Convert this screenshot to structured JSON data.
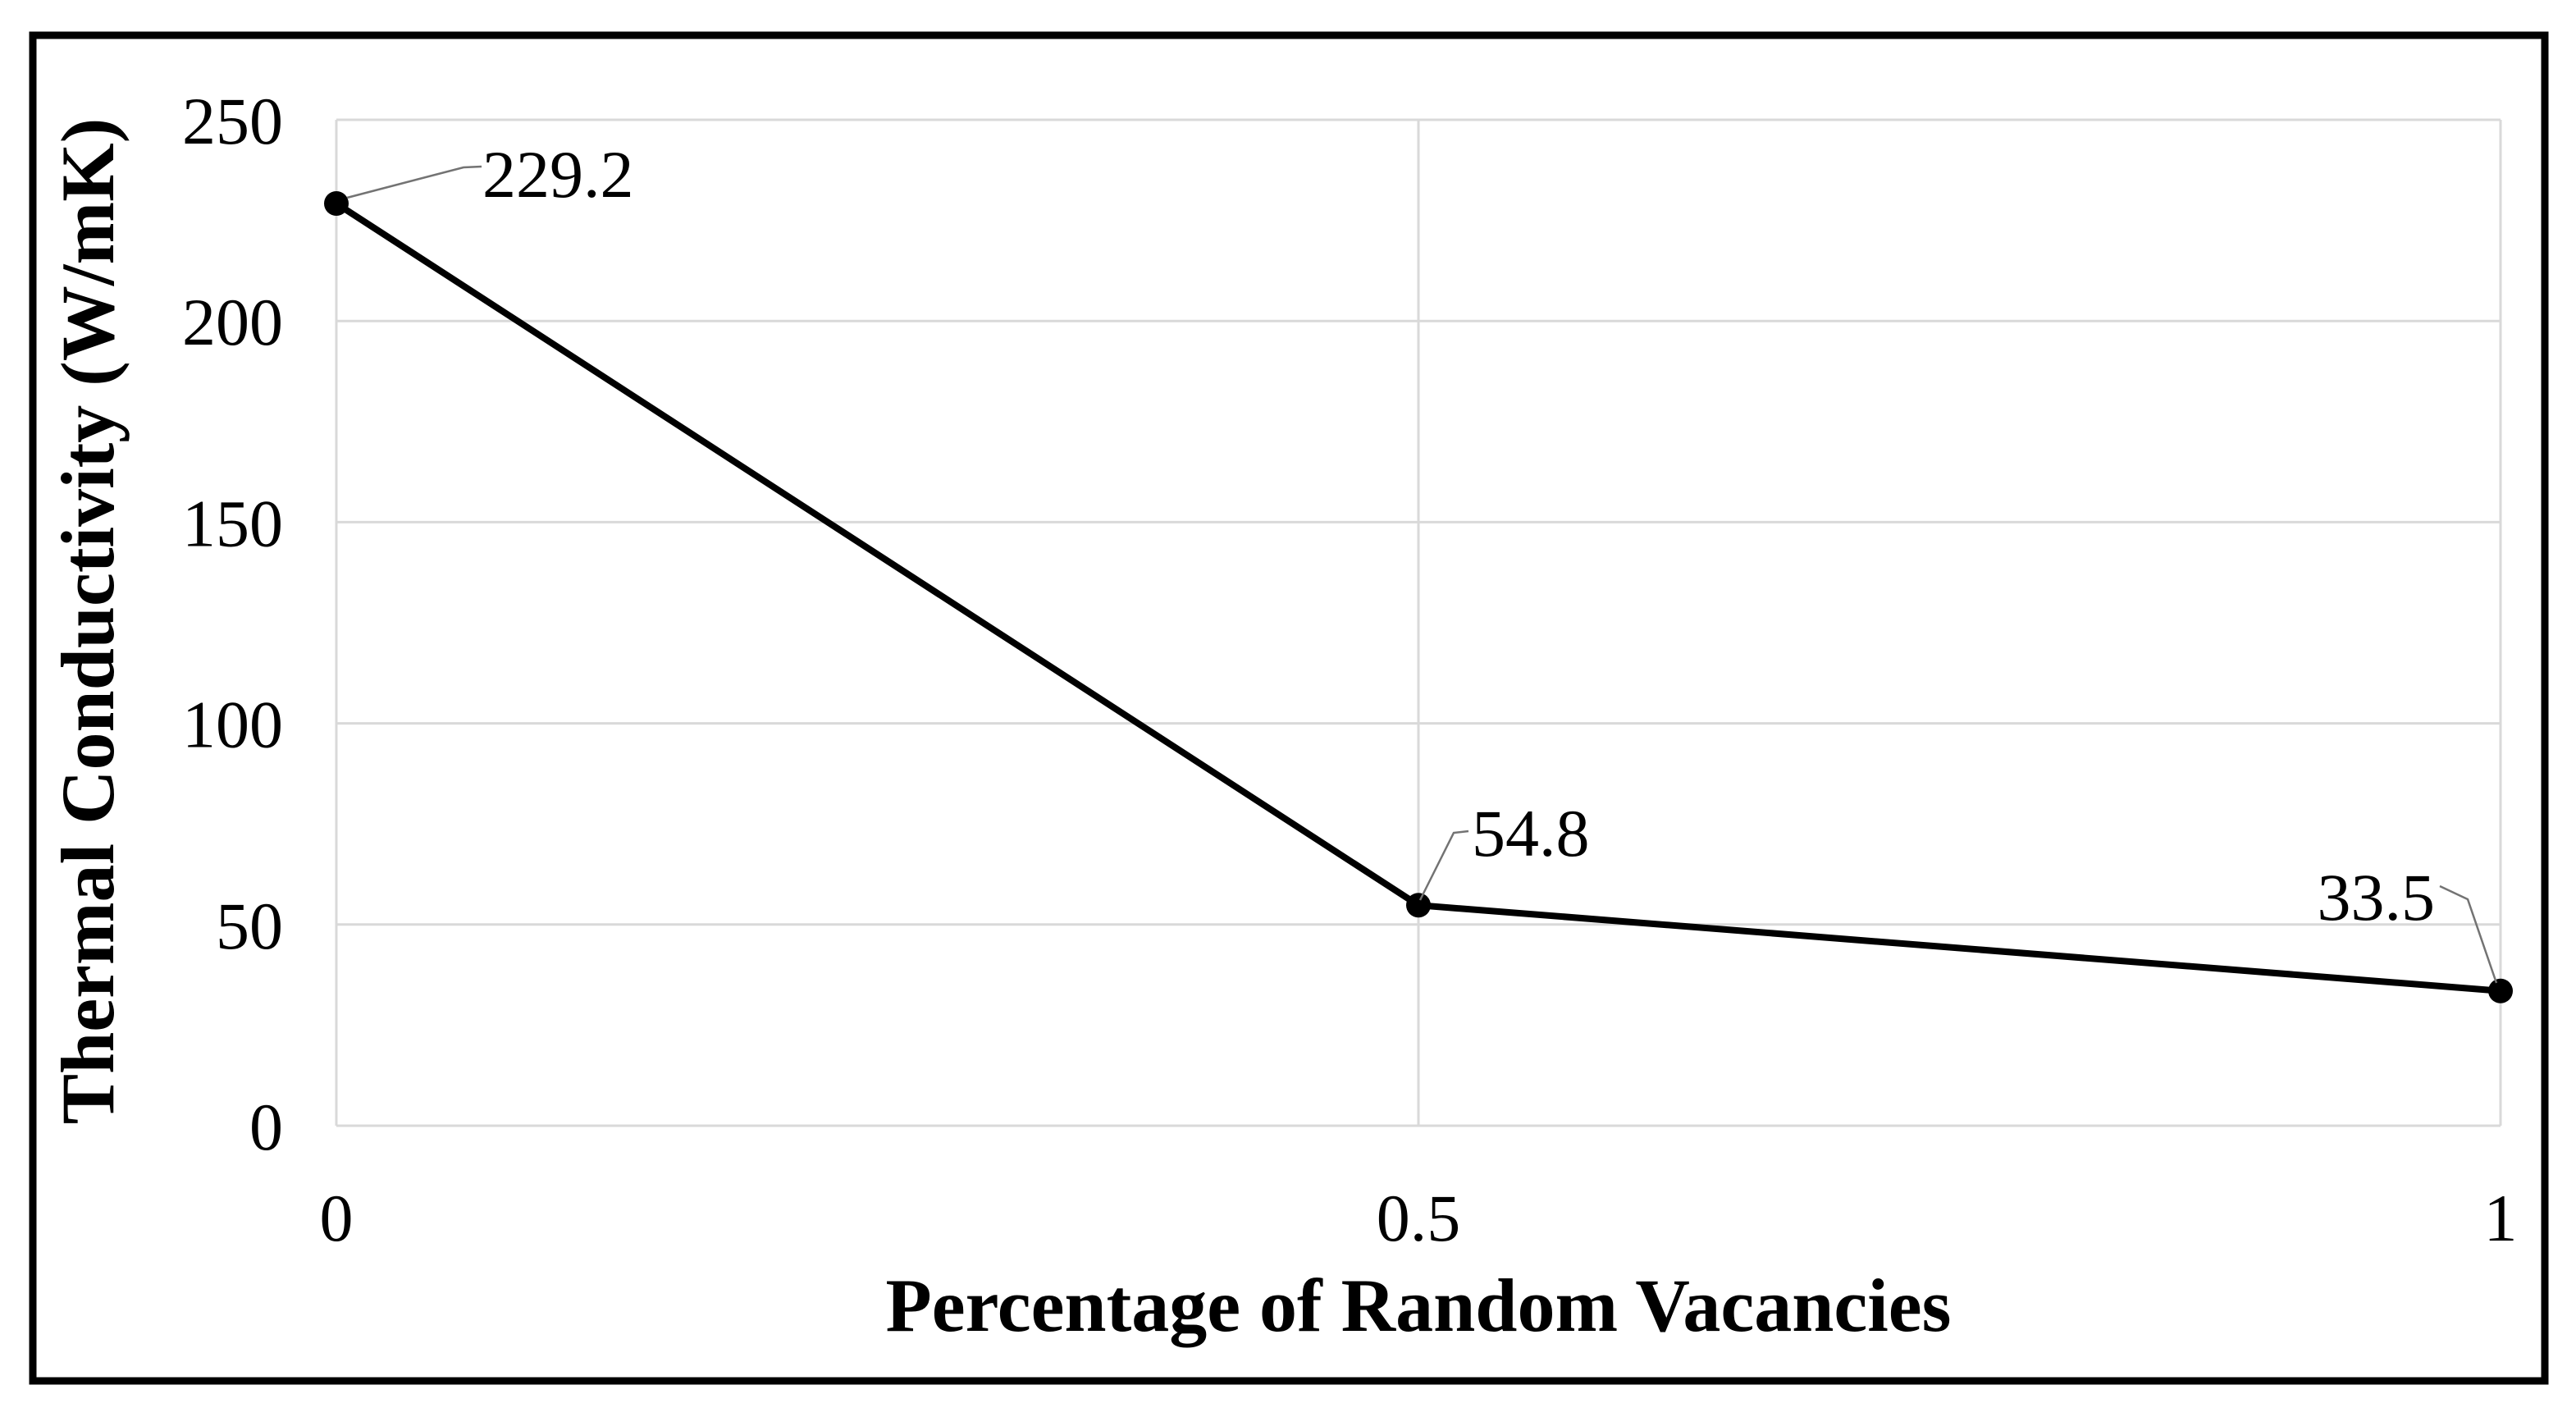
{
  "chart_data": {
    "type": "line",
    "title": "",
    "xlabel": "Percentage of Random Vacancies",
    "ylabel": "Thermal Conductivity (W/mK)",
    "x": [
      0,
      0.5,
      1
    ],
    "x_tick_labels": [
      "0",
      "0.5",
      "1"
    ],
    "y_ticks": [
      0,
      50,
      100,
      150,
      200,
      250
    ],
    "xlim": [
      0,
      1
    ],
    "ylim": [
      0,
      250
    ],
    "grid": true,
    "legend": false,
    "series": [
      {
        "values": [
          229.2,
          54.8,
          33.5
        ],
        "data_labels": [
          "229.2",
          "54.8",
          "33.5"
        ],
        "marker": "circle"
      }
    ],
    "colors": {
      "line": "#000000",
      "marker": "#000000",
      "gridline": "#d9d9d9",
      "leader_line": "#737373",
      "text": "#000000",
      "frame_border": "#000000",
      "background": "#ffffff"
    }
  }
}
